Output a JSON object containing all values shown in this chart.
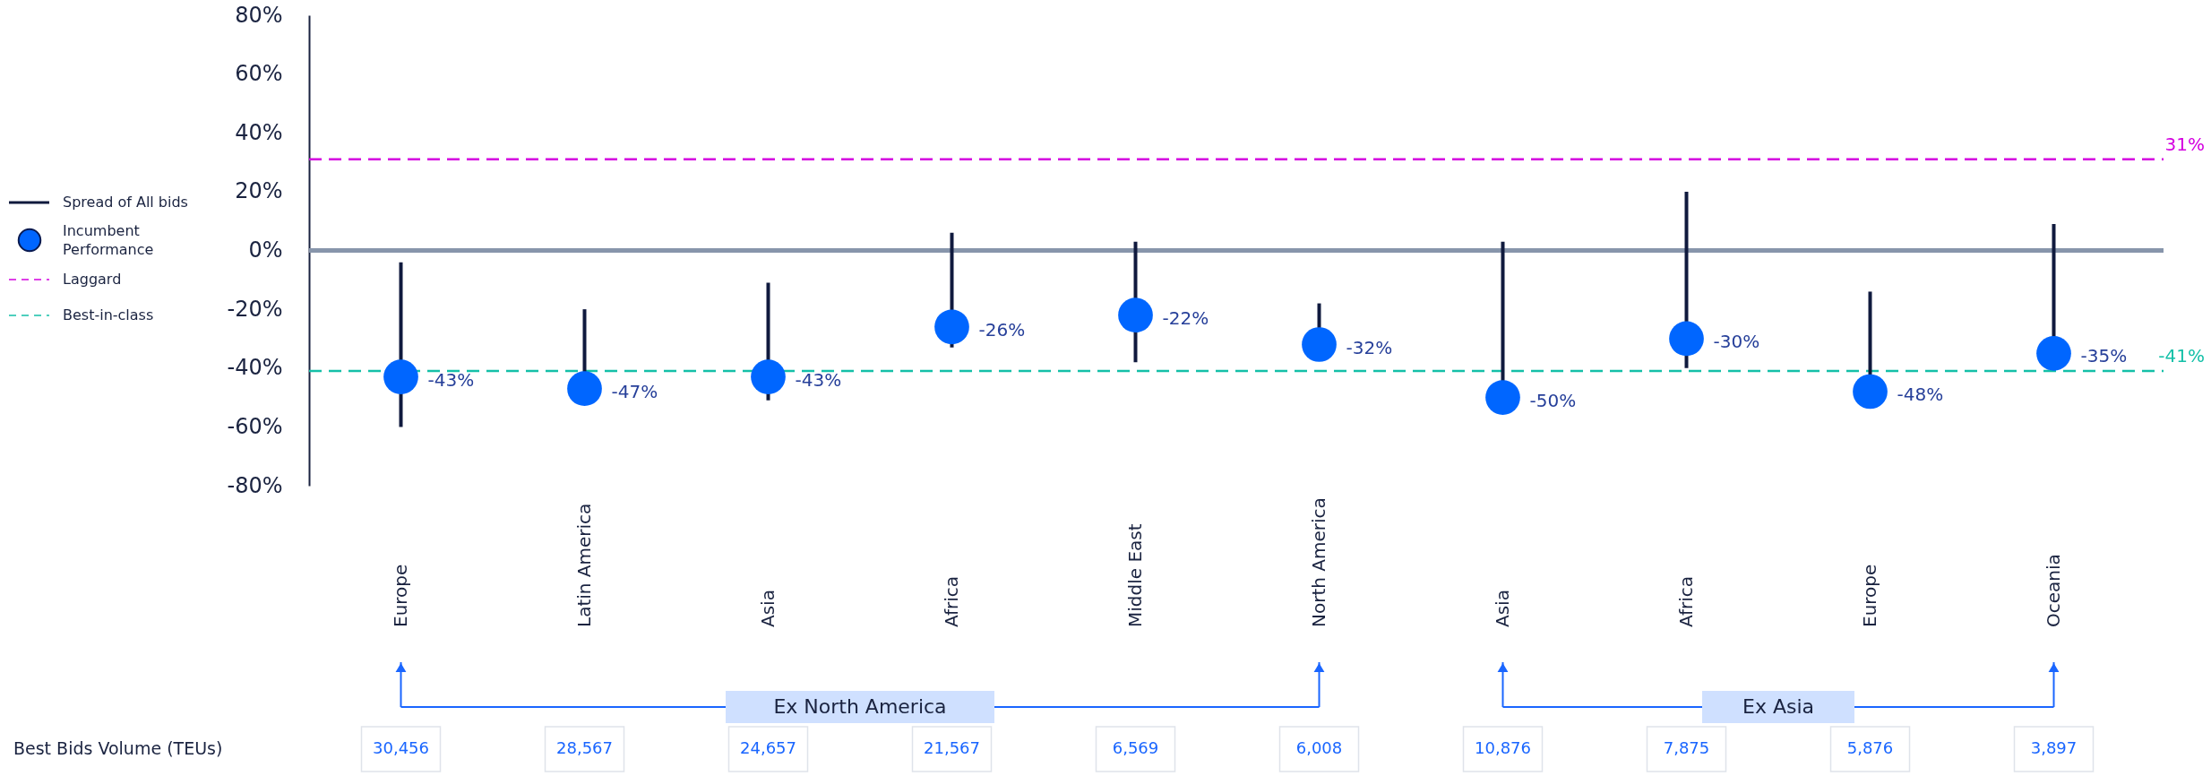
{
  "chart_data": {
    "type": "bar",
    "categories": [
      "Europe",
      "Latin America",
      "Asia",
      "Africa",
      "Middle East",
      "North America",
      "Asia",
      "Africa",
      "Europe",
      "Oceania"
    ],
    "series": [
      {
        "name": "Spread of All bids",
        "color": "#101a3e",
        "base": [
          -60,
          -47,
          -51,
          -33,
          -38,
          -33,
          -50,
          -40,
          -48,
          -35
        ],
        "values": [
          56,
          27,
          40,
          39,
          41,
          15,
          53,
          60,
          34,
          44
        ]
      },
      {
        "name": "Incumbent Performance",
        "type": "scatter",
        "color": "#0066ff",
        "marker": "circle",
        "values": [
          -43,
          -47,
          -43,
          -26,
          -22,
          -32,
          -50,
          -30,
          -48,
          -35
        ],
        "value_labels": [
          "-43%",
          "-47%",
          "-43%",
          "-26%",
          "-22%",
          "-32%",
          "-50%",
          "-30%",
          "-48%",
          "-35%"
        ]
      }
    ],
    "ylim": [
      -80,
      80
    ],
    "yticks": [
      {
        "value": 80,
        "label": "80%"
      },
      {
        "value": 60,
        "label": "60%"
      },
      {
        "value": 40,
        "label": "40%"
      },
      {
        "value": 20,
        "label": "20%"
      },
      {
        "value": 0,
        "label": "0%"
      },
      {
        "value": -20,
        "label": "-20%"
      },
      {
        "value": -40,
        "label": "-40%"
      },
      {
        "value": -60,
        "label": "-60%"
      },
      {
        "value": -80,
        "label": "-80%"
      }
    ],
    "ref_lines": [
      {
        "axis": "y",
        "value": 0,
        "color": "#8795ab",
        "line_style": "solid"
      },
      {
        "axis": "y",
        "value": 31,
        "label": "Laggard",
        "color": "#d400e0",
        "line_style": "dashed"
      },
      {
        "axis": "y",
        "value": -41,
        "label": "Best-in-class",
        "color": "#14c0a8",
        "line_style": "dashed"
      }
    ],
    "annotations": [
      "31%",
      "-41%",
      "Best Bids  Volume (TEUs)",
      "30,456",
      "28,567",
      "24,657",
      "21,567",
      "6,569",
      "6,008",
      "10,876",
      "7,875",
      "5,876",
      "3,897",
      "Ex North America",
      "Ex Asia"
    ],
    "legend": "left",
    "grid": false
  }
}
